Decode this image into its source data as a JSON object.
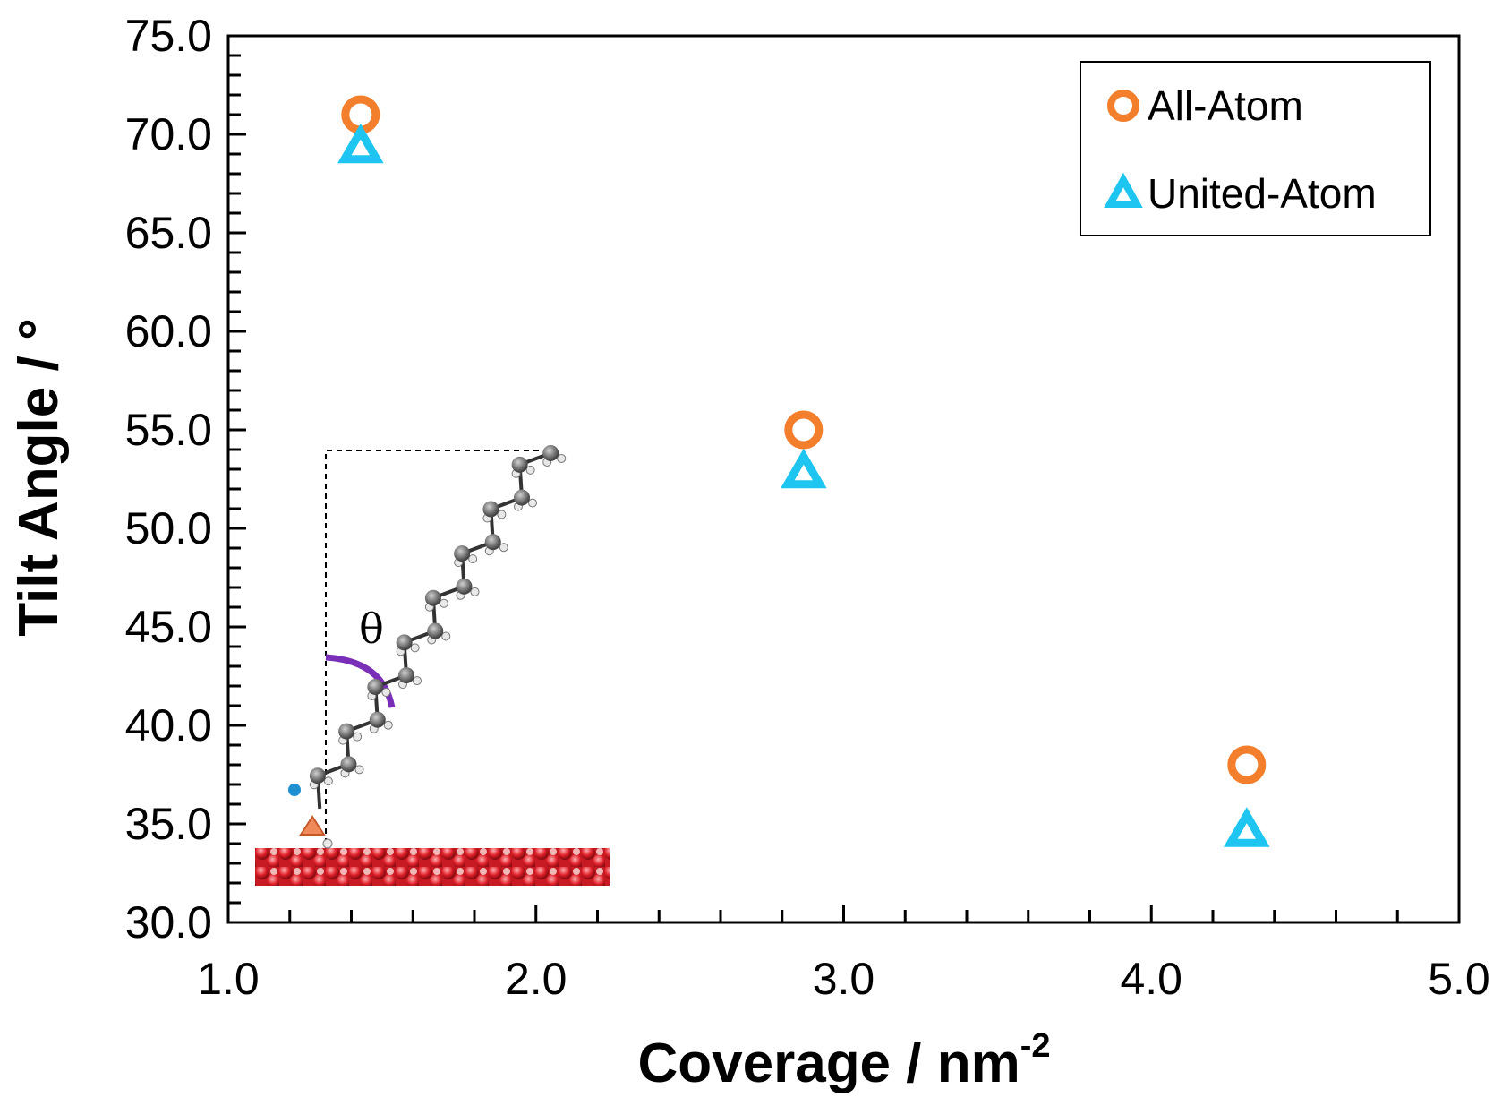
{
  "chart_data": {
    "type": "scatter",
    "title": "",
    "xlabel": "Coverage / nm",
    "xlabel_superscript": "-2",
    "ylabel": "Tilt Angle / °",
    "xlim": [
      1.0,
      5.0
    ],
    "ylim": [
      30.0,
      75.0
    ],
    "x_ticks": [
      "1.0",
      "2.0",
      "3.0",
      "4.0",
      "5.0"
    ],
    "y_ticks": [
      "30.0",
      "35.0",
      "40.0",
      "45.0",
      "50.0",
      "55.0",
      "60.0",
      "65.0",
      "70.0",
      "75.0"
    ],
    "grid": false,
    "legend_position": "top-right",
    "series": [
      {
        "name": "All-Atom",
        "marker": "circle",
        "color": "#F37E2B",
        "x": [
          1.43,
          2.87,
          4.31
        ],
        "y": [
          71.0,
          55.0,
          38.0
        ]
      },
      {
        "name": "United-Atom",
        "marker": "triangle",
        "color": "#1EC5F0",
        "x": [
          1.43,
          2.87,
          4.31
        ],
        "y": [
          69.3,
          52.8,
          34.6
        ]
      }
    ],
    "annotation": {
      "label": "θ",
      "description": "alkyl chain on surface with tilt angle"
    }
  }
}
